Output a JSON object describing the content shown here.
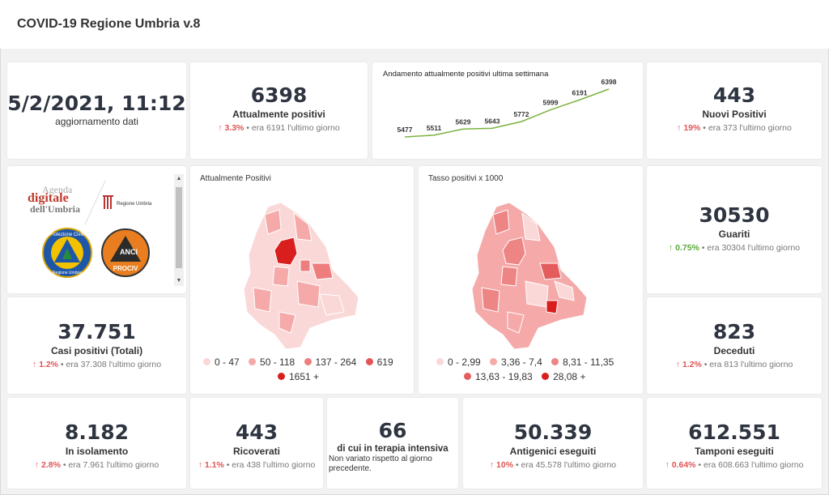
{
  "app": {
    "title": "COVID-19 Regione Umbria v.8"
  },
  "update": {
    "datetime": "5/2/2021, 11:12",
    "label": "aggiornamento dati"
  },
  "positivi": {
    "value": "6398",
    "label": "Attualmente positivi",
    "arrow": "🡩",
    "pct": "3.3%",
    "note": "• era 6191 l'ultimo giorno"
  },
  "trend": {
    "title": "Andamento attualmente positivi ultima settimana",
    "labels": [
      "5477",
      "5511",
      "5629",
      "5643",
      "5772",
      "5999",
      "6191",
      "6398"
    ]
  },
  "chart_data": {
    "type": "line",
    "title": "Andamento attualmente positivi ultima settimana",
    "x": [
      1,
      2,
      3,
      4,
      5,
      6,
      7,
      8
    ],
    "values": [
      5477,
      5511,
      5629,
      5643,
      5772,
      5999,
      6191,
      6398
    ],
    "color": "#7cb342"
  },
  "nuovi": {
    "value": "443",
    "label": "Nuovi Positivi",
    "arrow": "🡩",
    "pct": "19%",
    "note": "• era 373 l'ultimo giorno"
  },
  "logos": {
    "agenda_line1": "Agenda",
    "agenda_line2": "digitale",
    "agenda_line3": "dell'Umbria",
    "regione": "Regione Umbria",
    "protezione": "Protezione Civile",
    "protezione_sub": "Regione Umbria",
    "anci": "ANCI",
    "anci_sub": "PROCIV"
  },
  "map1": {
    "title": "Attualmente Positivi",
    "legend": [
      {
        "label": "0 - 47",
        "color": "#fbd8d8"
      },
      {
        "label": "50 - 118",
        "color": "#f5a9a9"
      },
      {
        "label": "137 - 264",
        "color": "#ee7d7d"
      },
      {
        "label": "619",
        "color": "#e55555"
      },
      {
        "label": "1651 +",
        "color": "#d91e1e"
      }
    ]
  },
  "map2": {
    "title": "Tasso positivi x 1000",
    "legend": [
      {
        "label": "0 - 2,99",
        "color": "#fbd8d8"
      },
      {
        "label": "3,36 - 7,4",
        "color": "#f5a9a9"
      },
      {
        "label": "8,31 - 11,35",
        "color": "#ee8585"
      },
      {
        "label": "13,63 - 19,83",
        "color": "#e55c5c"
      },
      {
        "label": "28,08 +",
        "color": "#d91e1e"
      }
    ]
  },
  "guariti": {
    "value": "30530",
    "label": "Guariti",
    "arrow": "🡩",
    "pct": "0.75%",
    "note": "• era 30304 l'ultimo giorno"
  },
  "casi": {
    "value": "37.751",
    "label": "Casi positivi (Totali)",
    "arrow": "🡩",
    "pct": "1.2%",
    "note": "• era 37.308 l'ultimo giorno"
  },
  "deceduti": {
    "value": "823",
    "label": "Deceduti",
    "arrow": "🡩",
    "pct": "1.2%",
    "note": "• era 813 l'ultimo giorno"
  },
  "isolamento": {
    "value": "8.182",
    "label": "In isolamento",
    "arrow": "🡩",
    "pct": "2.8%",
    "note": "• era 7.961 l'ultimo giorno"
  },
  "ricoverati": {
    "value": "443",
    "label": "Ricoverati",
    "arrow": "🡩",
    "pct": "1.1%",
    "note": "• era 438 l'ultimo giorno"
  },
  "terapia": {
    "value": "66",
    "label": "di cui in terapia intensiva",
    "note": "Non variato rispetto al giorno precedente."
  },
  "antigenici": {
    "value": "50.339",
    "label": "Antigenici eseguiti",
    "arrow": "🡩",
    "pct": "10%",
    "note": "• era 45.578 l'ultimo giorno"
  },
  "tamponi": {
    "value": "612.551",
    "label": "Tamponi eseguiti",
    "arrow": "🡩",
    "pct": "0.64%",
    "note": "• era 608.663 l'ultimo giorno"
  }
}
